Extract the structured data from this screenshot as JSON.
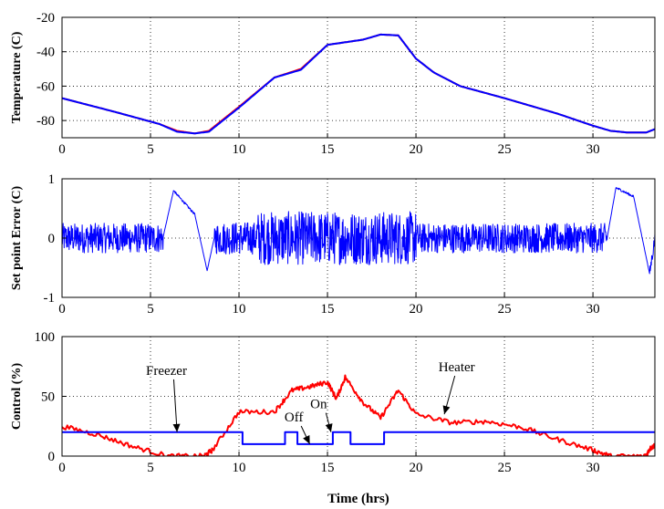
{
  "colors": {
    "blue": "#0000ff",
    "red": "#ff0000",
    "grid": "#000000",
    "frame": "#000000"
  },
  "chart_data": [
    {
      "type": "line",
      "ylabel": "Temperature (C)",
      "xlim": [
        0,
        33.5
      ],
      "ylim": [
        -90,
        -20
      ],
      "xticks": [
        0,
        5,
        10,
        15,
        20,
        25,
        30
      ],
      "yticks": [
        -80,
        -60,
        -40,
        -20
      ],
      "grid": true,
      "series": [
        {
          "color": "#ff0000",
          "x": [
            0,
            3,
            5.5,
            6.5,
            7.5,
            8.3,
            10,
            12,
            13.5,
            15,
            17,
            18,
            19,
            20,
            21,
            22.5,
            25,
            28,
            30,
            31,
            32,
            33,
            33.5
          ],
          "y": [
            -67,
            -75,
            -82,
            -86,
            -87.5,
            -86,
            -72,
            -55,
            -50,
            -36,
            -33,
            -30,
            -30.5,
            -44,
            -52,
            -60,
            -67,
            -76,
            -83,
            -86,
            -87,
            -87,
            -85
          ]
        },
        {
          "color": "#0000ff",
          "x": [
            0,
            3,
            5.5,
            6.5,
            7.5,
            8.3,
            10,
            12,
            13.5,
            15,
            17,
            18,
            19,
            20,
            21,
            22.5,
            25,
            28,
            30,
            31,
            32,
            33,
            33.5
          ],
          "y": [
            -67,
            -75,
            -82,
            -86.5,
            -87.5,
            -86.5,
            -72.5,
            -55,
            -50.5,
            -36,
            -33,
            -30,
            -30.5,
            -44,
            -52,
            -60,
            -67,
            -76,
            -83,
            -86,
            -87,
            -87,
            -85
          ]
        }
      ]
    },
    {
      "type": "line",
      "ylabel": "Set point Error (C)",
      "xlim": [
        0,
        33.5
      ],
      "ylim": [
        -1,
        1
      ],
      "xticks": [
        0,
        5,
        10,
        15,
        20,
        25,
        30
      ],
      "yticks": [
        -1,
        0,
        1
      ],
      "grid": true,
      "series": [
        {
          "color": "#0000ff",
          "peaks": [
            {
              "x": 6.3,
              "y": 0.8
            },
            {
              "x": 8.2,
              "y": -0.55
            },
            {
              "x": 31.5,
              "y": 0.85
            },
            {
              "x": 33.2,
              "y": -0.6
            }
          ],
          "noise_amplitude": {
            "0-6": 0.25,
            "8-11": 0.3,
            "11-20": 0.45,
            "20-31": 0.25
          }
        }
      ]
    },
    {
      "type": "line",
      "ylabel": "Control (%)",
      "xlabel": "Time (hrs)",
      "xlim": [
        0,
        33.5
      ],
      "ylim": [
        0,
        100
      ],
      "xticks": [
        0,
        5,
        10,
        15,
        20,
        25,
        30
      ],
      "yticks": [
        0,
        50,
        100
      ],
      "grid": true,
      "series": [
        {
          "color": "#ff0000",
          "x": [
            0,
            2,
            4,
            6,
            8,
            8.5,
            10,
            12,
            13,
            14,
            15,
            15.5,
            16,
            17,
            18,
            19,
            20,
            22,
            24,
            26,
            28,
            30,
            31,
            33,
            33.2,
            33.5
          ],
          "y": [
            25,
            18,
            8,
            0,
            0,
            5,
            37,
            37,
            55,
            58,
            62,
            48,
            66,
            45,
            32,
            55,
            35,
            28,
            29,
            24,
            14,
            5,
            0,
            0,
            6,
            9
          ]
        },
        {
          "color": "#0000ff",
          "steps": [
            [
              0,
              20
            ],
            [
              10.2,
              10
            ],
            [
              12.6,
              20
            ],
            [
              13.3,
              10
            ],
            [
              15.3,
              20
            ],
            [
              16.3,
              10
            ],
            [
              18.2,
              20
            ],
            [
              33.5,
              20
            ]
          ]
        }
      ],
      "annotations": [
        {
          "text": "Freezer",
          "tx": 5.9,
          "ty": 68,
          "ax": 6.5,
          "ay": 20
        },
        {
          "text": "Heater",
          "tx": 22.3,
          "ty": 71,
          "ax": 21.6,
          "ay": 35
        },
        {
          "text": "Off",
          "tx": 13.1,
          "ty": 29,
          "ax": 14,
          "ay": 10
        },
        {
          "text": "On",
          "tx": 14.5,
          "ty": 40,
          "ax": 15.2,
          "ay": 20
        }
      ]
    }
  ]
}
